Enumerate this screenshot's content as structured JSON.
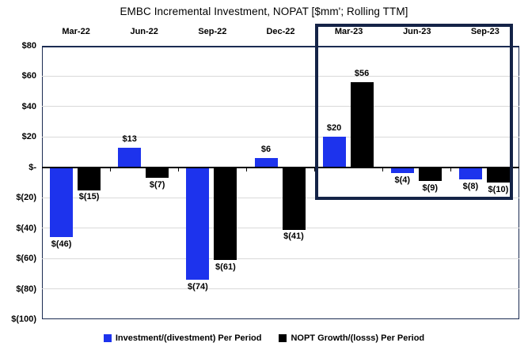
{
  "title": "EMBC Incremental Investment, NOPAT [$mm'; Rolling TTM]",
  "colors": {
    "investment_blue": "#1d33ed",
    "nopat_black": "#000000",
    "highlight_box": "#142347",
    "gridline": "#d9d9d9",
    "zero_axis": "#000000"
  },
  "chart_data": {
    "type": "bar",
    "title": "EMBC Incremental Investment, NOPAT [$mm'; Rolling TTM]",
    "categories": [
      "Mar-22",
      "Jun-22",
      "Sep-22",
      "Dec-22",
      "Mar-23",
      "Jun-23",
      "Sep-23"
    ],
    "series": [
      {
        "name": "Investment/(divestment) Per Period",
        "color": "#1d33ed",
        "values": [
          -46,
          13,
          -74,
          6,
          20,
          -4,
          -8
        ],
        "labels": [
          "$(46)",
          "$13",
          "$(74)",
          "$6",
          "$20",
          "$(4)",
          "$(8)"
        ]
      },
      {
        "name": "NOPT Growth/(losss) Per Period",
        "color": "#000000",
        "values": [
          -15,
          -7,
          -61,
          -41,
          56,
          -9,
          -10
        ],
        "labels": [
          "$(15)",
          "$(7)",
          "$(61)",
          "$(41)",
          "$56",
          "$(9)",
          "$(10)"
        ]
      }
    ],
    "y_axis": {
      "min": -100,
      "max": 80,
      "step": 20,
      "tick_labels": [
        "$80",
        "$60",
        "$40",
        "$20",
        "$-",
        "$(20)",
        "$(40)",
        "$(60)",
        "$(80)",
        "$(100)"
      ]
    },
    "x_label_position": "top",
    "grid": true,
    "highlight_categories": [
      "Mar-23",
      "Jun-23",
      "Sep-23"
    ],
    "legend_position": "bottom"
  },
  "legend": {
    "items": [
      {
        "label": "Investment/(divestment) Per Period",
        "color": "#1d33ed",
        "key": "investment"
      },
      {
        "label": "NOPT Growth/(losss) Per Period",
        "color": "#000000",
        "key": "nopat"
      }
    ]
  }
}
